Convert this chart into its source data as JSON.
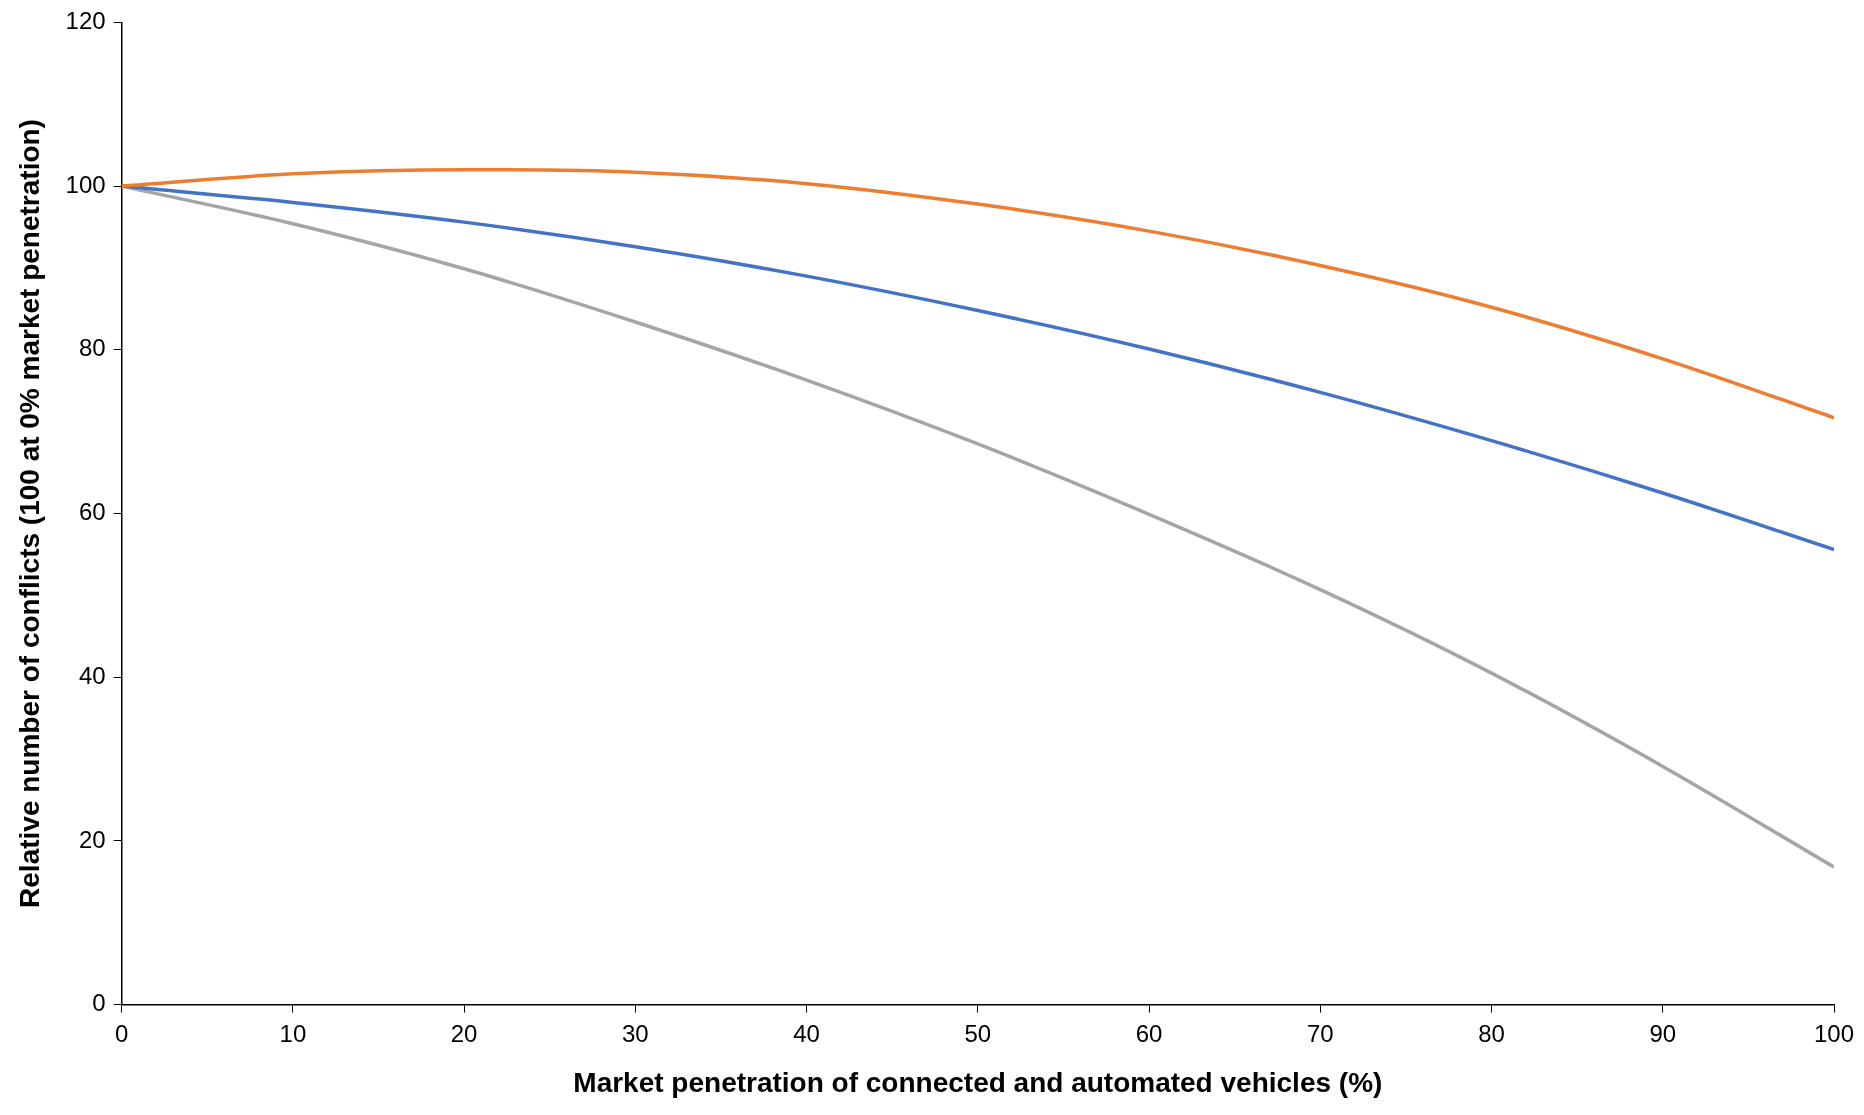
{
  "chart_data": {
    "type": "line",
    "xlabel": "Market penetration of connected and automated vehicles (%)",
    "ylabel": "Relative number of conflicts (100 at 0% market penetration)",
    "x": [
      0,
      10,
      20,
      30,
      40,
      50,
      60,
      70,
      80,
      90,
      100
    ],
    "series": [
      {
        "color": "#ed7d31",
        "values": [
          100,
          101.5,
          102,
          101.7,
          100.3,
          97.8,
          94.5,
          90.3,
          85.2,
          78.9,
          71.7
        ]
      },
      {
        "color": "#4472c4",
        "values": [
          100,
          98,
          95.6,
          92.6,
          89,
          84.8,
          80.1,
          74.8,
          68.9,
          62.5,
          55.6
        ]
      },
      {
        "color": "#a5a5a5",
        "values": [
          100,
          95.4,
          89.9,
          83.4,
          76.3,
          68.5,
          59.9,
          50.7,
          40.5,
          29.1,
          16.8
        ]
      }
    ],
    "xlim": [
      0,
      100
    ],
    "xticks": [
      0,
      10,
      20,
      30,
      40,
      50,
      60,
      70,
      80,
      90,
      100
    ],
    "ylim": [
      0,
      120
    ],
    "yticks": [
      0,
      20,
      40,
      60,
      80,
      100,
      120
    ],
    "grid": false,
    "legend": false,
    "marker": "none",
    "line_style": "solid"
  }
}
